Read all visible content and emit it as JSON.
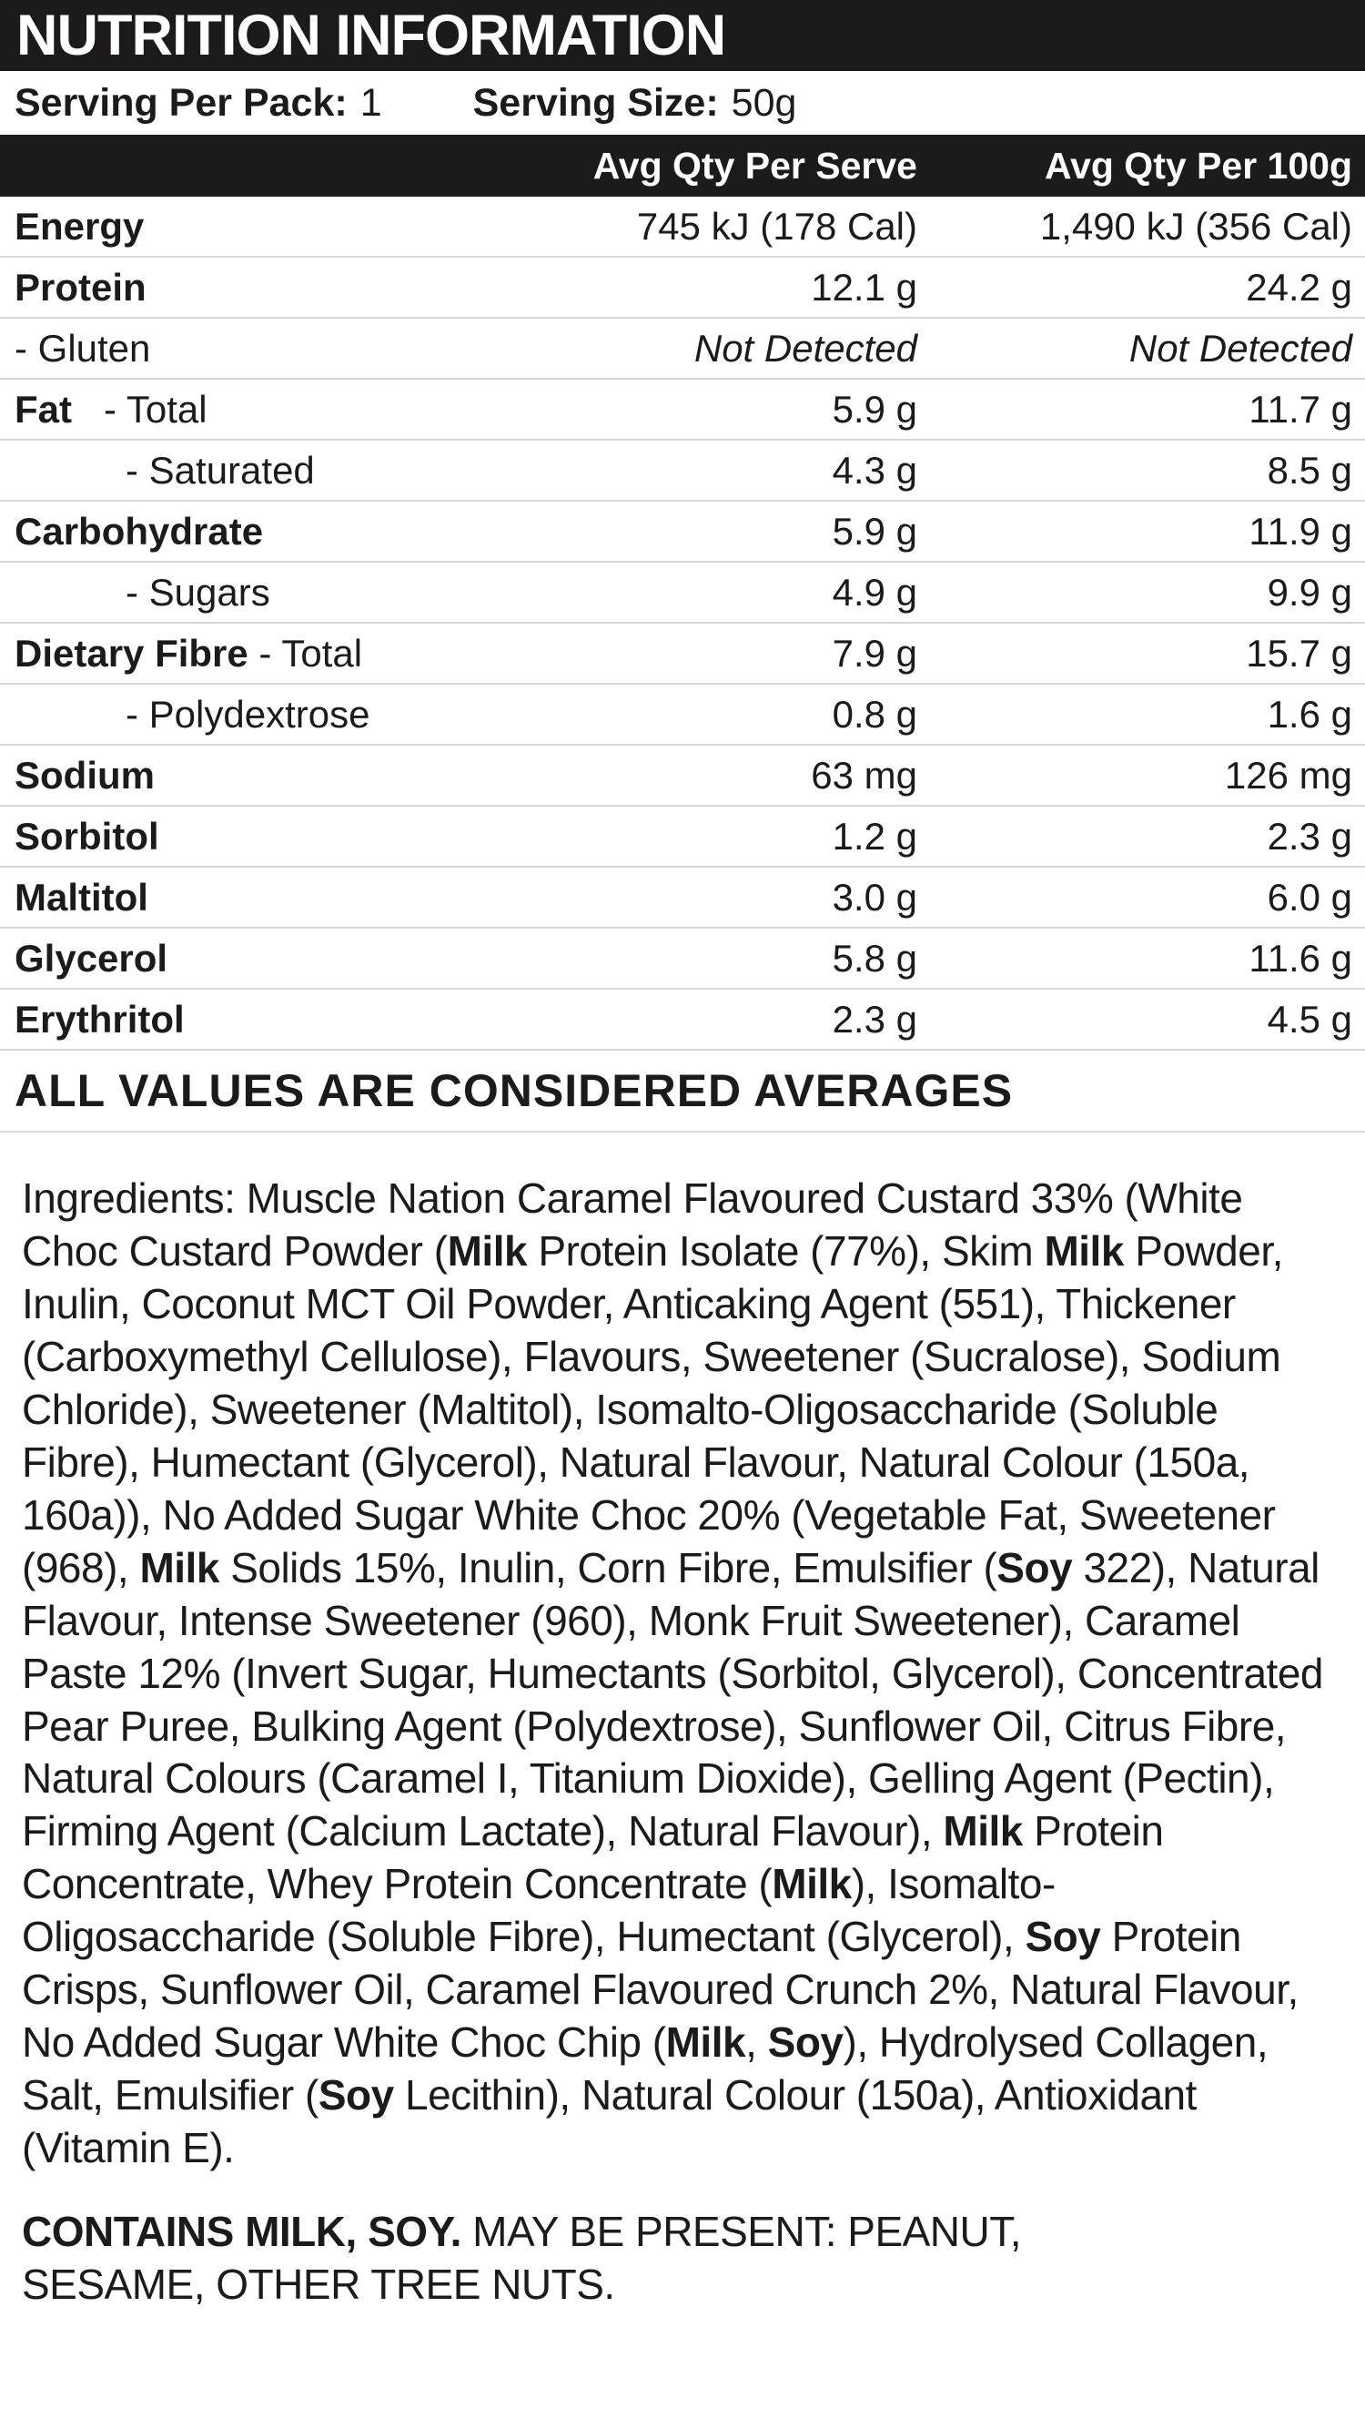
{
  "header": {
    "title": "NUTRITION INFORMATION"
  },
  "serving": {
    "per_pack_label": "Serving Per Pack:",
    "per_pack_value": "1",
    "size_label": "Serving Size:",
    "size_value": "50g"
  },
  "table": {
    "col_serve": "Avg Qty Per Serve",
    "col_100g": "Avg Qty Per 100g",
    "rows": [
      {
        "name_bold": "Energy",
        "name_rest": "",
        "serve": "745 kJ (178 Cal)",
        "per100": "1,490 kJ (356 Cal)"
      },
      {
        "name_bold": "Protein",
        "name_rest": "",
        "serve": "12.1 g",
        "per100": "24.2 g"
      },
      {
        "name_bold": "",
        "name_rest": "- Gluten",
        "serve": "Not Detected",
        "per100": "Not Detected"
      },
      {
        "name_bold": "Fat",
        "name_rest": "   - Total",
        "serve": "5.9 g",
        "per100": "11.7 g"
      },
      {
        "name_bold": "",
        "name_rest": "- Saturated",
        "serve": "4.3 g",
        "per100": "8.5 g"
      },
      {
        "name_bold": "Carbohydrate",
        "name_rest": "",
        "serve": "5.9 g",
        "per100": "11.9 g"
      },
      {
        "name_bold": "",
        "name_rest": "- Sugars",
        "serve": "4.9 g",
        "per100": "9.9 g"
      },
      {
        "name_bold": "Dietary Fibre",
        "name_rest": " - Total",
        "serve": "7.9 g",
        "per100": "15.7 g"
      },
      {
        "name_bold": "",
        "name_rest": "- Polydextrose",
        "serve": "0.8 g",
        "per100": "1.6 g"
      },
      {
        "name_bold": "Sodium",
        "name_rest": "",
        "serve": "63 mg",
        "per100": "126 mg"
      },
      {
        "name_bold": "Sorbitol",
        "name_rest": "",
        "serve": "1.2 g",
        "per100": "2.3 g"
      },
      {
        "name_bold": "Maltitol",
        "name_rest": "",
        "serve": "3.0 g",
        "per100": "6.0 g"
      },
      {
        "name_bold": "Glycerol",
        "name_rest": "",
        "serve": "5.8 g",
        "per100": "11.6 g"
      },
      {
        "name_bold": "Erythritol",
        "name_rest": "",
        "serve": "2.3 g",
        "per100": "4.5 g"
      }
    ],
    "footer": "ALL VALUES ARE CONSIDERED AVERAGES"
  },
  "ingredients": {
    "segments": [
      {
        "t": "Ingredients: Muscle Nation Caramel Flavoured Custard 33% (White Choc Custard Powder (",
        "b": false
      },
      {
        "t": "Milk",
        "b": true
      },
      {
        "t": " Protein Isolate (77%), Skim ",
        "b": false
      },
      {
        "t": "Milk",
        "b": true
      },
      {
        "t": " Powder, Inulin, Coconut MCT Oil Powder, Anticaking Agent (551), Thickener (Carboxymethyl Cellulose), Flavours, Sweetener (Sucralose), Sodium Chloride), Sweetener (Maltitol), Isomalto-Oligosaccharide (Soluble Fibre), Humectant (Glycerol), Natural Flavour, Natural Colour (150a, 160a)), No Added Sugar White Choc 20% (Vegetable Fat, Sweetener (968), ",
        "b": false
      },
      {
        "t": "Milk",
        "b": true
      },
      {
        "t": " Solids 15%, Inulin, Corn Fibre, Emulsifier (",
        "b": false
      },
      {
        "t": "Soy",
        "b": true
      },
      {
        "t": " 322), Natural Flavour, Intense Sweetener (960), Monk Fruit Sweetener), Caramel Paste 12% (Invert Sugar, Humectants (Sorbitol, Glycerol), Concentrated Pear Puree, Bulking Agent (Polydextrose), Sunflower Oil, Citrus Fibre, Natural Colours (Caramel I, Titanium Dioxide), Gelling Agent (Pectin), Firming Agent (Calcium Lactate), Natural Flavour), ",
        "b": false
      },
      {
        "t": "Milk",
        "b": true
      },
      {
        "t": " Protein Concentrate, Whey Protein Concentrate (",
        "b": false
      },
      {
        "t": "Milk",
        "b": true
      },
      {
        "t": "), Isomalto-Oligosaccharide (Soluble Fibre), Humectant (Glycerol), ",
        "b": false
      },
      {
        "t": "Soy",
        "b": true
      },
      {
        "t": " Protein Crisps, Sunflower Oil, Caramel Flavoured Crunch 2%, Natural Flavour, No Added Sugar White Choc Chip (",
        "b": false
      },
      {
        "t": "Milk",
        "b": true
      },
      {
        "t": ", ",
        "b": false
      },
      {
        "t": "Soy",
        "b": true
      },
      {
        "t": "), Hydrolysed Collagen, Salt, Emulsifier (",
        "b": false
      },
      {
        "t": "Soy",
        "b": true
      },
      {
        "t": " Lecithin), Natural Colour (150a), Antioxidant (Vitamin E).",
        "b": false
      }
    ]
  },
  "allergen": {
    "segments": [
      {
        "t": "CONTAINS MILK, SOY.",
        "b": true
      },
      {
        "t": " MAY BE PRESENT: PEANUT, SESAME, OTHER TREE NUTS.",
        "b": false
      }
    ]
  },
  "colors": {
    "bar": "#1d1a1b",
    "text": "#1d1a1b",
    "sep": "#d7d7d7",
    "background": "#ffffff"
  }
}
